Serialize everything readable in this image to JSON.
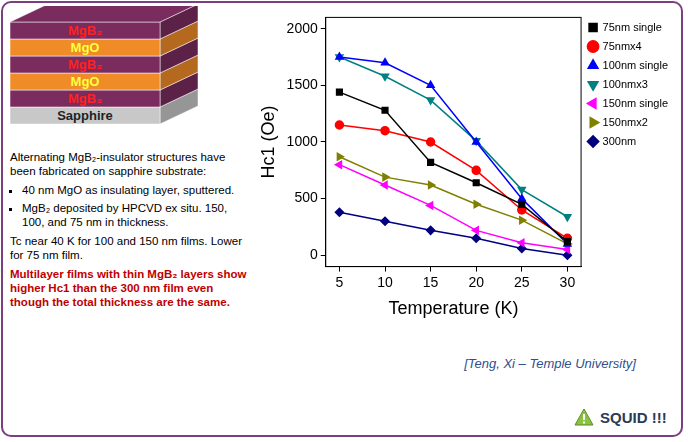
{
  "diagram": {
    "layers": [
      {
        "label": "MgB₂",
        "color": "#7b2c5e"
      },
      {
        "label": "MgO",
        "color": "#f08c28"
      },
      {
        "label": "MgB₂",
        "color": "#7b2c5e"
      },
      {
        "label": "MgO",
        "color": "#f08c28"
      },
      {
        "label": "MgB₂",
        "color": "#7b2c5e"
      },
      {
        "label": "Sapphire",
        "color": "#c8c8c8"
      }
    ]
  },
  "text": {
    "intro": "Alternating MgB₂-insulator structures have been fabricated on sapphire substrate:",
    "bullets": [
      "40 nm MgO as insulating layer, sputtered.",
      "MgB₂ deposited by HPCVD ex situ. 150, 100, and 75 nm in thickness."
    ],
    "tc": "Tc near 40 K for 100 and 150 nm films. Lower for 75 nm film.",
    "conclusion": "Multilayer films with thin MgB₂ layers show higher Hc1 than the 300 nm film even though the total thickness are the same."
  },
  "chart_data": {
    "type": "line",
    "xlabel": "Temperature (K)",
    "ylabel": "Hc1 (Oe)",
    "x": [
      5,
      10,
      15,
      20,
      25,
      30
    ],
    "series": [
      {
        "name": "75nm single",
        "color": "#000000",
        "marker": "square",
        "values": [
          1440,
          1280,
          820,
          640,
          450,
          120
        ]
      },
      {
        "name": "75nmx4",
        "color": "#ff0000",
        "marker": "circle",
        "values": [
          1150,
          1100,
          1000,
          750,
          400,
          150
        ]
      },
      {
        "name": "100nm single",
        "color": "#0000ff",
        "marker": "triangle",
        "values": [
          1750,
          1700,
          1500,
          1000,
          500,
          100
        ]
      },
      {
        "name": "100nmx3",
        "color": "#008080",
        "marker": "triangle_down",
        "values": [
          1750,
          1580,
          1370,
          1010,
          580,
          340
        ]
      },
      {
        "name": "150nm single",
        "color": "#ff00ff",
        "marker": "triangle_left",
        "values": [
          800,
          620,
          440,
          220,
          110,
          50
        ]
      },
      {
        "name": "150nmx2",
        "color": "#808000",
        "marker": "triangle_right",
        "values": [
          870,
          690,
          620,
          450,
          310,
          100
        ]
      },
      {
        "name": "300nm",
        "color": "#000080",
        "marker": "diamond",
        "values": [
          380,
          300,
          220,
          150,
          60,
          0
        ]
      }
    ],
    "xlim": [
      3.5,
      31.5
    ],
    "xticks": [
      5,
      10,
      15,
      20,
      25,
      30
    ],
    "ylim": [
      -100,
      2100
    ],
    "yticks": [
      0,
      500,
      1000,
      1500,
      2000
    ],
    "grid": false,
    "legend": "right"
  },
  "caption": "[Teng, Xi – Temple University]",
  "note": "SQUID !!!"
}
